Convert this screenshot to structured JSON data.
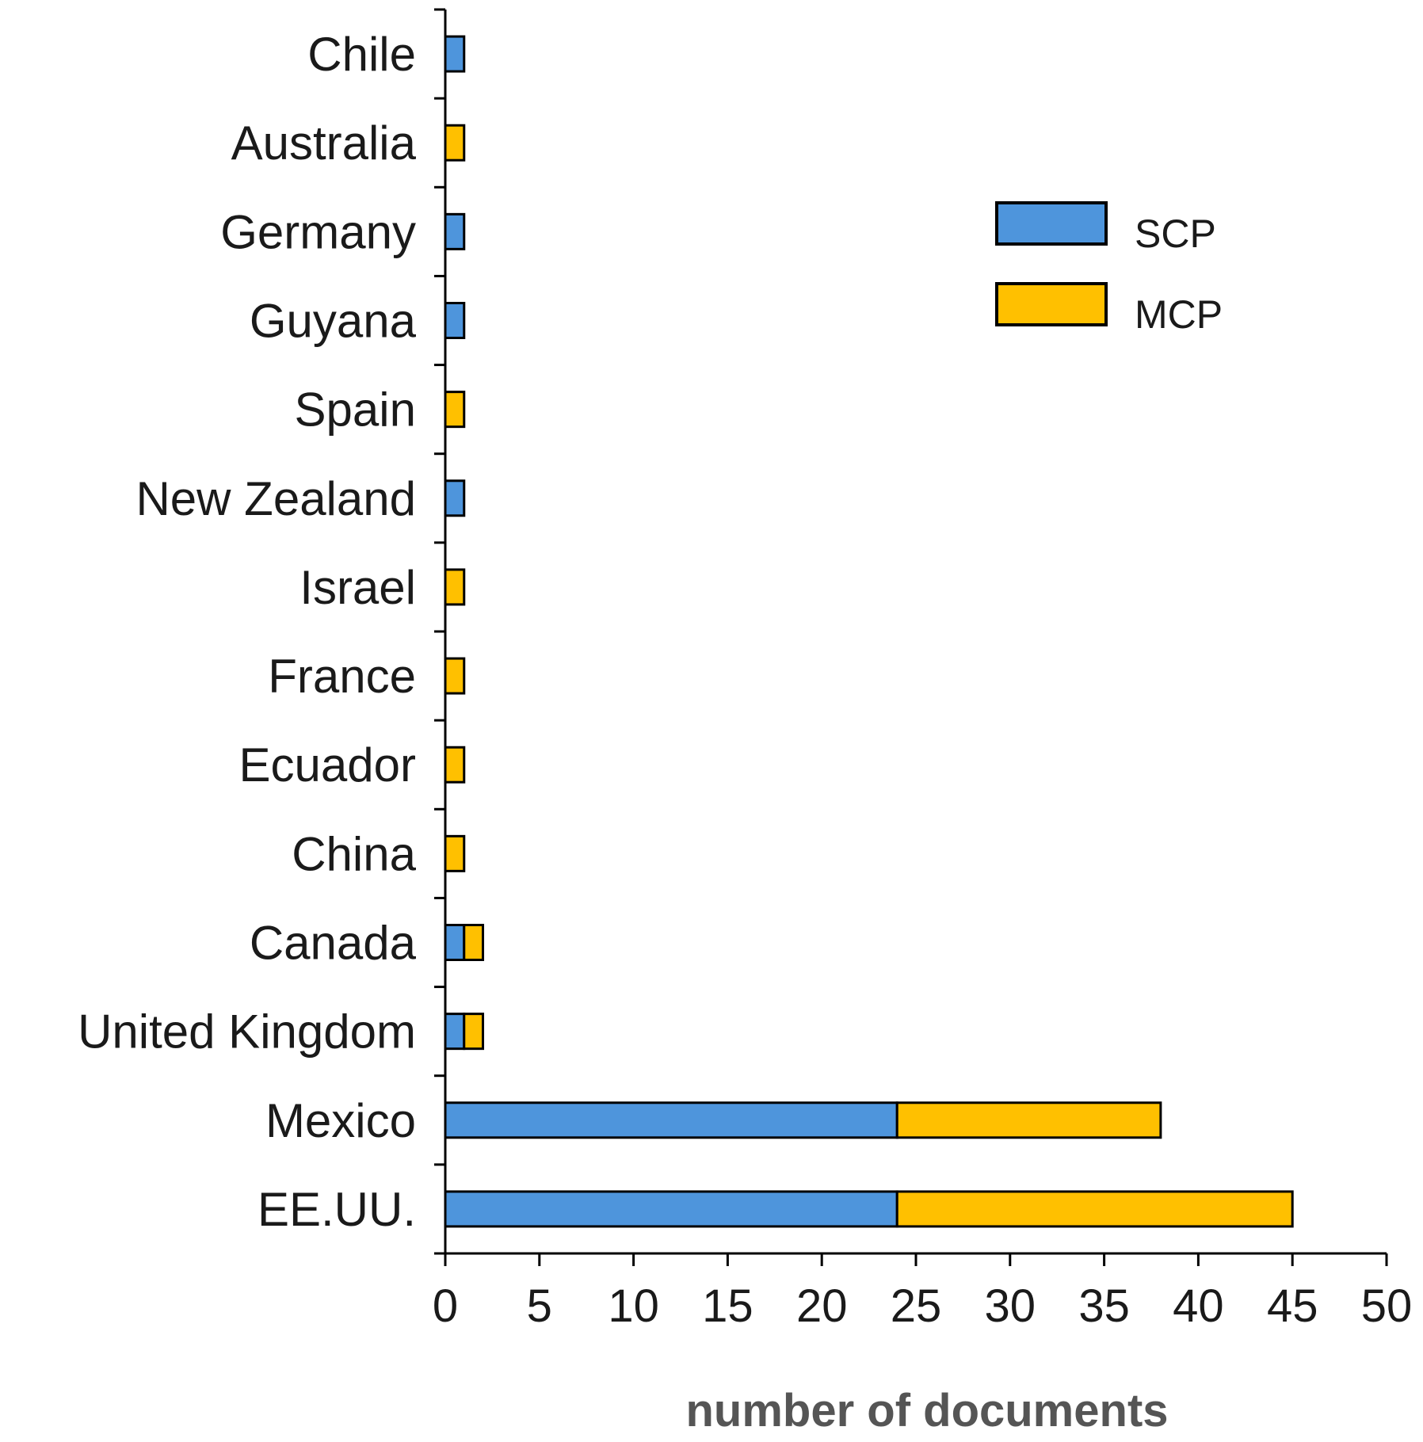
{
  "chart_data": {
    "type": "bar",
    "orientation": "horizontal",
    "stacked": true,
    "categories": [
      "Chile",
      "Australia",
      "Germany",
      "Guyana",
      "Spain",
      "New Zealand",
      "Israel",
      "France",
      "Ecuador",
      "China",
      "Canada",
      "United Kingdom",
      "Mexico",
      "EE.UU."
    ],
    "series": [
      {
        "name": "SCP",
        "color": "#4e95dc",
        "values": [
          1,
          0,
          1,
          1,
          0,
          1,
          0,
          0,
          0,
          0,
          1,
          1,
          24,
          24
        ]
      },
      {
        "name": "MCP",
        "color": "#ffc000",
        "values": [
          0,
          1,
          0,
          0,
          1,
          0,
          1,
          1,
          1,
          1,
          1,
          1,
          14,
          21
        ]
      }
    ],
    "xlabel": "number of documents",
    "ylabel": "",
    "title": "",
    "xlim": [
      0,
      50
    ],
    "xticks": [
      0,
      5,
      10,
      15,
      20,
      25,
      30,
      35,
      40,
      45,
      50
    ],
    "grid": false,
    "legend_position": "top-right"
  }
}
